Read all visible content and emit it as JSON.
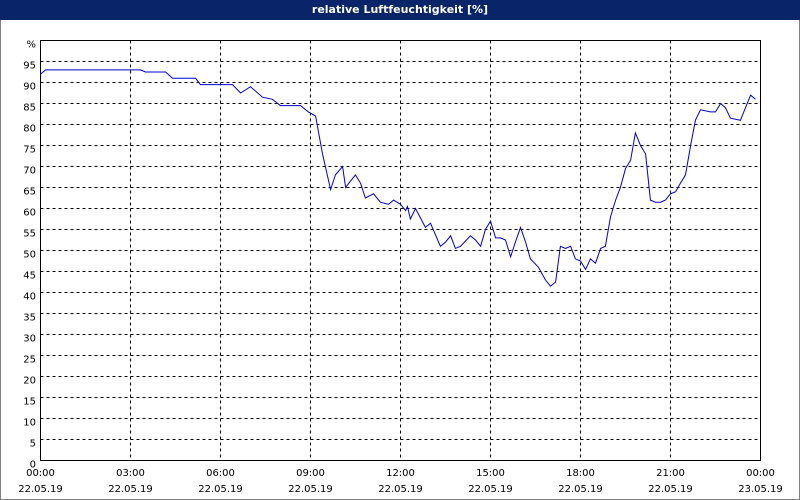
{
  "chart_data": {
    "type": "line",
    "title": "relative Luftfeuchtigkeit [%]",
    "x": [
      0,
      0.17,
      3.33,
      3.5,
      4.17,
      4.4,
      5.17,
      5.33,
      6.4,
      6.67,
      7,
      7.4,
      7.73,
      8,
      8.67,
      8.93,
      9.17,
      9.4,
      9.67,
      9.83,
      10.07,
      10.17,
      10.33,
      10.5,
      10.67,
      10.83,
      11.1,
      11.33,
      11.6,
      11.77,
      12,
      12.17,
      12.23,
      12.33,
      12.5,
      12.83,
      13,
      13.33,
      13.5,
      13.67,
      13.83,
      14,
      14.33,
      14.5,
      14.67,
      14.83,
      15,
      15.17,
      15.33,
      15.5,
      15.67,
      15.83,
      16,
      16.17,
      16.33,
      16.6,
      16.83,
      17,
      17.17,
      17.33,
      17.5,
      17.67,
      17.83,
      18,
      18.17,
      18.33,
      18.5,
      18.67,
      18.83,
      19,
      19.17,
      19.33,
      19.5,
      19.67,
      19.83,
      20,
      20.17,
      20.33,
      20.5,
      20.67,
      20.83,
      21,
      21.17,
      21.33,
      21.5,
      21.67,
      21.83,
      22,
      22.33,
      22.5,
      22.67,
      22.83,
      23,
      23.33,
      23.5,
      23.67,
      23.83
    ],
    "series": [
      {
        "color": "#0000cc",
        "values": [
          92,
          93,
          93,
          92.5,
          92.5,
          91,
          91,
          89.5,
          89.5,
          87.5,
          89,
          86.5,
          86,
          84.5,
          84.5,
          83,
          82,
          73,
          64.5,
          68,
          70,
          65,
          66.5,
          68,
          66,
          62.5,
          63.5,
          61.5,
          61,
          62,
          61,
          59.5,
          60.5,
          57.5,
          60,
          55.5,
          56.5,
          51,
          52,
          53.5,
          50.5,
          51,
          53.5,
          52.5,
          51,
          55,
          57,
          53,
          53,
          52.5,
          48.5,
          52,
          55.5,
          52,
          48,
          46,
          43,
          41.5,
          42.5,
          51,
          50.5,
          51,
          48,
          47.5,
          45.5,
          48,
          47,
          50.5,
          51,
          58,
          62,
          65,
          69.5,
          71.5,
          78,
          75,
          73,
          62,
          61.5,
          61.5,
          62,
          63.5,
          64,
          66,
          68,
          75,
          81,
          83.5,
          83,
          83,
          85,
          84,
          81.5,
          81,
          84,
          87,
          86
        ]
      }
    ],
    "xlim": [
      0,
      24
    ],
    "xticks": [
      {
        "value": 0,
        "label": "00:00",
        "date": "22.05.19"
      },
      {
        "value": 3,
        "label": "03:00",
        "date": "22.05.19"
      },
      {
        "value": 6,
        "label": "06:00",
        "date": "22.05.19"
      },
      {
        "value": 9,
        "label": "09:00",
        "date": "22.05.19"
      },
      {
        "value": 12,
        "label": "12:00",
        "date": "22.05.19"
      },
      {
        "value": 15,
        "label": "15:00",
        "date": "22.05.19"
      },
      {
        "value": 18,
        "label": "18:00",
        "date": "22.05.19"
      },
      {
        "value": 21,
        "label": "21:00",
        "date": "22.05.19"
      },
      {
        "value": 24,
        "label": "00:00",
        "date": "23.05.19"
      }
    ],
    "ylim": [
      0,
      100
    ],
    "yticks": [
      0,
      5,
      10,
      15,
      20,
      25,
      30,
      35,
      40,
      45,
      50,
      55,
      60,
      65,
      70,
      75,
      80,
      85,
      90,
      95,
      {
        "value": 100,
        "label": "%"
      }
    ],
    "grid": true
  }
}
